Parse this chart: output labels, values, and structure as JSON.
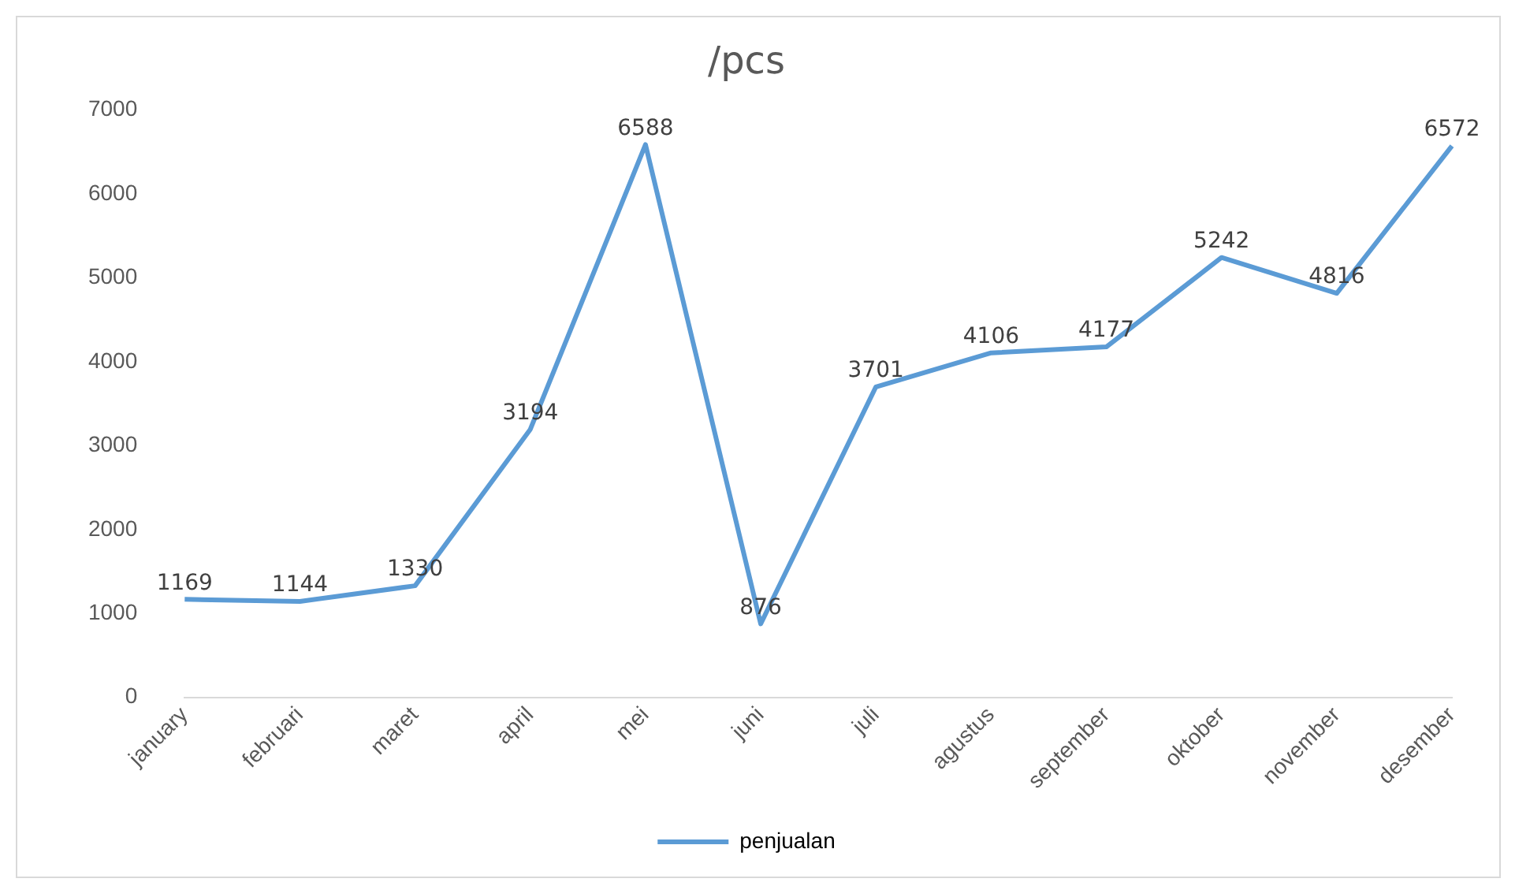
{
  "chart_data": {
    "type": "line",
    "title": "/pcs",
    "categories": [
      "january",
      "februari",
      "maret",
      "april",
      "mei",
      "juni",
      "juli",
      "agustus",
      "september",
      "oktober",
      "november",
      "desember"
    ],
    "series": [
      {
        "name": "penjualan",
        "color": "#5b9bd5",
        "values": [
          1169,
          1144,
          1330,
          3194,
          6588,
          876,
          3701,
          4106,
          4177,
          5242,
          4816,
          6572
        ]
      }
    ],
    "ylim": [
      0,
      7000
    ],
    "yticks": [
      0,
      1000,
      2000,
      3000,
      4000,
      5000,
      6000,
      7000
    ],
    "grid": false,
    "legend": "bottom",
    "line_style": "solid",
    "data_labels": true
  }
}
